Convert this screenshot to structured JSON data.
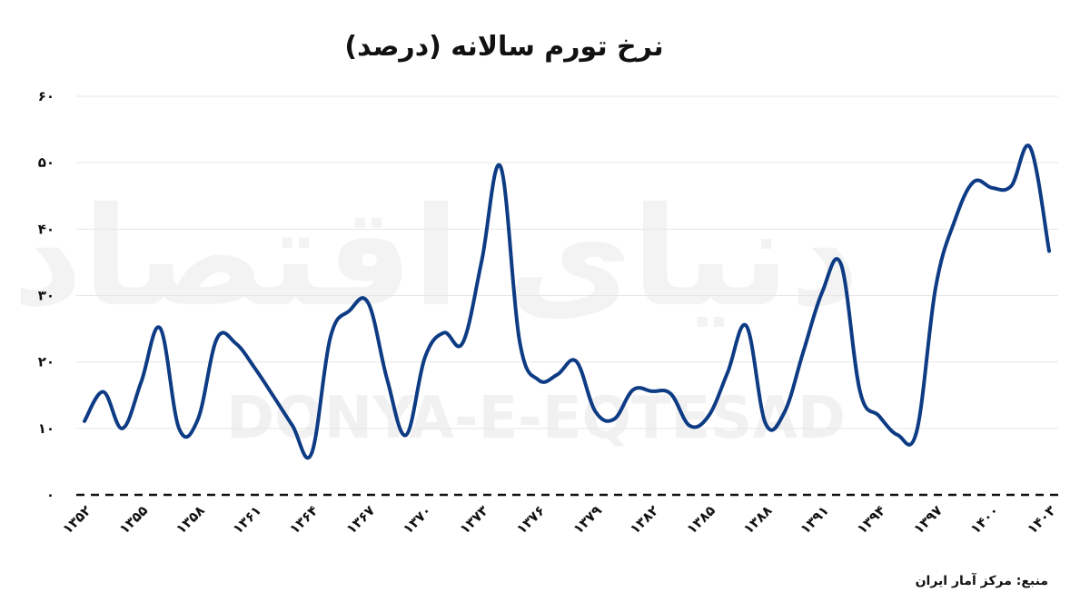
{
  "watermark": {
    "fa": "دنیای اقتصاد",
    "en": "DONYA-E-EQTESAD"
  },
  "source": "منبع: مرکز آمار ایران",
  "chart_data": {
    "type": "line",
    "title": "نرخ تورم سالانه (درصد)",
    "xlabel": "",
    "ylabel": "",
    "ylim": [
      0,
      60
    ],
    "yticks": [
      0,
      10,
      20,
      30,
      40,
      50,
      60
    ],
    "ytick_labels": [
      "۰",
      "۱۰",
      "۲۰",
      "۳۰",
      "۴۰",
      "۵۰",
      "۶۰"
    ],
    "xticks": [
      1352,
      1355,
      1358,
      1361,
      1364,
      1367,
      1370,
      1373,
      1376,
      1379,
      1382,
      1385,
      1388,
      1391,
      1394,
      1397,
      1400,
      1403
    ],
    "xtick_labels": [
      "۱۳۵۲",
      "۱۳۵۵",
      "۱۳۵۸",
      "۱۳۶۱",
      "۱۳۶۴",
      "۱۳۶۷",
      "۱۳۷۰",
      "۱۳۷۳",
      "۱۳۷۶",
      "۱۳۷۹",
      "۱۳۸۲",
      "۱۳۸۵",
      "۱۳۸۸",
      "۱۳۹۱",
      "۱۳۹۴",
      "۱۳۹۷",
      "۱۴۰۰",
      "۱۴۰۳"
    ],
    "grid": true,
    "series": [
      {
        "color": "#0d3b84",
        "x": [
          1352,
          1353,
          1354,
          1355,
          1356,
          1357,
          1358,
          1359,
          1360,
          1361,
          1362,
          1363,
          1364,
          1365,
          1366,
          1367,
          1368,
          1369,
          1370,
          1371,
          1372,
          1373,
          1374,
          1375,
          1376,
          1377,
          1378,
          1379,
          1380,
          1381,
          1382,
          1383,
          1384,
          1385,
          1386,
          1387,
          1388,
          1389,
          1390,
          1391,
          1392,
          1393,
          1394,
          1395,
          1396,
          1397,
          1398,
          1399,
          1400,
          1401,
          1402,
          1403
        ],
        "y": [
          11.1,
          15.5,
          10.0,
          17.0,
          25.1,
          10.0,
          11.4,
          23.5,
          22.8,
          19.1,
          14.8,
          10.4,
          6.2,
          23.7,
          27.7,
          28.9,
          17.4,
          9.0,
          20.7,
          24.4,
          22.9,
          35.2,
          49.4,
          23.2,
          17.3,
          18.1,
          20.1,
          12.6,
          11.4,
          15.8,
          15.6,
          15.2,
          10.4,
          11.9,
          18.4,
          25.4,
          10.8,
          12.4,
          21.5,
          30.5,
          34.7,
          15.6,
          11.9,
          9.0,
          9.6,
          31.2,
          41.2,
          47.1,
          46.2,
          46.5,
          52.3,
          36.7
        ]
      }
    ]
  }
}
